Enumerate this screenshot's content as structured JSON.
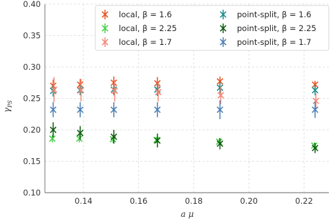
{
  "chart_data": {
    "type": "scatter",
    "xlabel": "a μ",
    "ylabel_main": "γ",
    "ylabel_sub": "PS",
    "xlim": [
      0.126,
      0.229
    ],
    "ylim": [
      0.1,
      0.4
    ],
    "xticks": [
      0.14,
      0.16,
      0.18,
      0.2,
      0.22
    ],
    "xtick_labels": [
      "0.14",
      "0.16",
      "0.18",
      "0.20",
      "0.22"
    ],
    "yticks": [
      0.1,
      0.15,
      0.2,
      0.25,
      0.3,
      0.35,
      0.4
    ],
    "ytick_labels": [
      "0.10",
      "0.15",
      "0.20",
      "0.25",
      "0.30",
      "0.35",
      "0.40"
    ],
    "grid": true,
    "legend_position": "top-right",
    "x": [
      0.129,
      0.1388,
      0.151,
      0.1668,
      0.1895,
      0.224
    ],
    "series": [
      {
        "name": "local, β = 1.6",
        "color": "#e8531f",
        "offset": 0.0,
        "values": [
          0.27,
          0.272,
          0.275,
          0.274,
          0.277,
          0.272
        ],
        "errors": [
          0.01,
          0.009,
          0.01,
          0.01,
          0.008,
          0.006
        ]
      },
      {
        "name": "point-split, β = 1.6",
        "color": "#1a8c8c",
        "offset": 0.0,
        "values": [
          0.262,
          0.263,
          0.264,
          0.264,
          0.267,
          0.263
        ],
        "errors": [
          0.009,
          0.008,
          0.009,
          0.01,
          0.009,
          0.008
        ]
      },
      {
        "name": "local, β = 2.25",
        "color": "#4ccf4c",
        "offset": -0.0003,
        "values": [
          0.186,
          0.186,
          0.185,
          0.184,
          0.181,
          0.175
        ],
        "errors": [
          0.006,
          0.006,
          0.006,
          0.005,
          0.005,
          0.005
        ]
      },
      {
        "name": "point-split, β = 2.25",
        "color": "#0d5c0d",
        "offset": 0.0,
        "values": [
          0.2,
          0.195,
          0.189,
          0.183,
          0.178,
          0.171
        ],
        "errors": [
          0.012,
          0.011,
          0.011,
          0.011,
          0.009,
          0.008
        ]
      },
      {
        "name": "local, β = 1.7",
        "color": "#f08a78",
        "offset": 0.0003,
        "values": [
          0.264,
          0.263,
          0.262,
          0.26,
          0.255,
          0.246
        ],
        "errors": [
          0.02,
          0.018,
          0.017,
          0.015,
          0.014,
          0.012
        ]
      },
      {
        "name": "point-split, β = 1.7",
        "color": "#4a7fb5",
        "offset": 0.0,
        "values": [
          0.232,
          0.232,
          0.232,
          0.232,
          0.232,
          0.232
        ],
        "errors": [
          0.012,
          0.012,
          0.012,
          0.012,
          0.015,
          0.013
        ]
      }
    ]
  }
}
